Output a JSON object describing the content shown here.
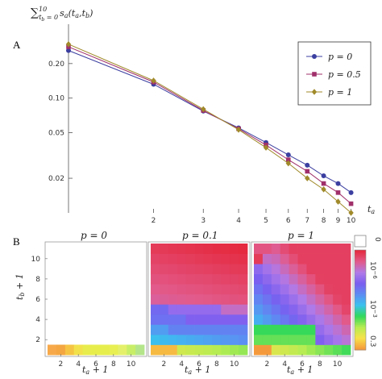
{
  "panel_a_letter": "A",
  "panel_b_letter": "B",
  "colors": {
    "p0": "#3b3fa0",
    "p05": "#a0306a",
    "p1": "#a08a2a"
  },
  "chart_data": [
    {
      "type": "line",
      "panel": "A",
      "ylabel": "∑ₜb₌₀¹⁰ sa(ta,tb)",
      "xlabel": "ta",
      "xscale": "log",
      "yscale": "log",
      "x_ticks": [
        2,
        3,
        4,
        5,
        6,
        7,
        8,
        9,
        10
      ],
      "y_ticks": [
        0.02,
        0.05,
        0.1,
        0.2
      ],
      "y_tick_labels": [
        "0.02",
        "0.05",
        "0.10",
        "0.20"
      ],
      "xlim": [
        1,
        10.5
      ],
      "ylim": [
        0.011,
        0.4
      ],
      "legend_position": "top-right",
      "x": [
        1,
        2,
        3,
        4,
        5,
        6,
        7,
        8,
        9,
        10
      ],
      "series": [
        {
          "name": "p = 0",
          "color": "#3b3fa0",
          "marker": "circle",
          "values": [
            0.26,
            0.132,
            0.077,
            0.055,
            0.041,
            0.032,
            0.026,
            0.021,
            0.018,
            0.015
          ]
        },
        {
          "name": "p = 0.5",
          "color": "#a0306a",
          "marker": "square",
          "values": [
            0.28,
            0.138,
            0.078,
            0.054,
            0.039,
            0.029,
            0.023,
            0.018,
            0.015,
            0.012
          ]
        },
        {
          "name": "p = 1",
          "color": "#a08a2a",
          "marker": "diamond",
          "values": [
            0.295,
            0.142,
            0.08,
            0.053,
            0.037,
            0.027,
            0.02,
            0.016,
            0.0125,
            0.01
          ]
        }
      ]
    },
    {
      "type": "heatmap",
      "panel": "B",
      "xlabel": "ta + 1",
      "ylabel": "tb + 1",
      "x_ticks": [
        2,
        4,
        6,
        8,
        10
      ],
      "y_ticks": [
        2,
        4,
        6,
        8,
        10
      ],
      "colorbar_ticks": [
        "0",
        "10⁻⁶",
        "10⁻³",
        "0.3"
      ],
      "subplots": [
        {
          "title": "p = 0",
          "rows": [
            [
              "#f7a94a",
              "#f4a641",
              "#f6c443",
              "#f3e14c",
              "#e8ec4c",
              "#e7ee4c",
              "#e6ee4e",
              "#e8ef52",
              "#e5f06a",
              "#c8ee68",
              "#b4e58a"
            ],
            [
              "#ffffff",
              "#ffffff",
              "#ffffff",
              "#ffffff",
              "#ffffff",
              "#ffffff",
              "#ffffff",
              "#ffffff",
              "#ffffff",
              "#ffffff",
              "#ffffff"
            ]
          ]
        },
        {
          "title": "p = 0.1",
          "rows": []
        },
        {
          "title": "p = 1",
          "rows": []
        }
      ]
    }
  ]
}
